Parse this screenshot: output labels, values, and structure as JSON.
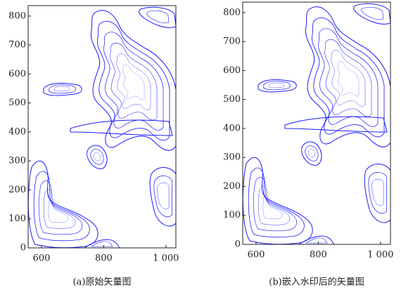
{
  "chart_data": [
    {
      "type": "contour",
      "xlim": [
        557,
        1032
      ],
      "ylim": [
        0,
        836
      ],
      "xticks": [
        600,
        800,
        {
          "value": 1000,
          "label": "1 000"
        }
      ],
      "yticks": [
        0,
        100,
        200,
        300,
        400,
        500,
        600,
        700,
        800
      ],
      "caption": "(a)原始矢量图"
    },
    {
      "type": "contour",
      "xlim": [
        557,
        1032
      ],
      "ylim": [
        0,
        836
      ],
      "xticks": [
        600,
        800,
        {
          "value": 1000,
          "label": "1 000"
        }
      ],
      "yticks": [
        0,
        100,
        200,
        300,
        400,
        500,
        600,
        700,
        800
      ],
      "caption": "(b)嵌入水印后的矢量图"
    }
  ]
}
